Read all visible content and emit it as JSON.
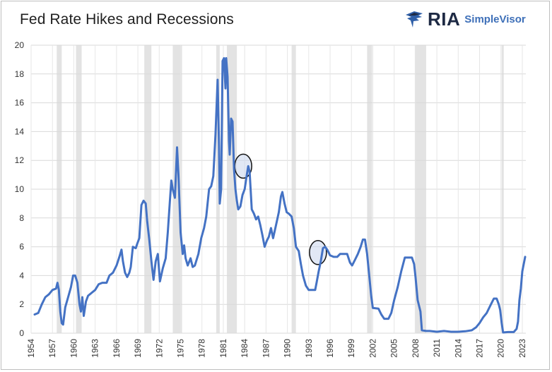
{
  "header": {
    "title": "Fed Rate Hikes and Recessions",
    "logo_main": "RIA",
    "logo_sub": "SimpleVisor"
  },
  "chart_data": {
    "type": "line",
    "title": "Fed Rate Hikes and Recessions",
    "xlabel": "",
    "ylabel": "",
    "xlim": [
      1954,
      2023.5
    ],
    "ylim": [
      0,
      20
    ],
    "grid": true,
    "x_ticks": [
      "1954",
      "1957",
      "1960",
      "1963",
      "1966",
      "1969",
      "1972",
      "1975",
      "1978",
      "1981",
      "1984",
      "1987",
      "1990",
      "1993",
      "1996",
      "1999",
      "2002",
      "2005",
      "2008",
      "2011",
      "2014",
      "2017",
      "2020",
      "2023"
    ],
    "y_ticks": [
      "0",
      "2",
      "4",
      "6",
      "8",
      "10",
      "12",
      "14",
      "16",
      "18",
      "20"
    ],
    "line_color": "#4472c4",
    "recession_color": "#d9d9d9",
    "recessions": [
      [
        1957.6,
        1958.3
      ],
      [
        1960.3,
        1961.1
      ],
      [
        1969.9,
        1970.9
      ],
      [
        1973.9,
        1975.2
      ],
      [
        1980.0,
        1980.5
      ],
      [
        1981.5,
        1982.9
      ],
      [
        1990.6,
        1991.2
      ],
      [
        2001.2,
        2001.9
      ],
      [
        2007.9,
        2009.5
      ],
      [
        2020.1,
        2020.4
      ]
    ],
    "highlights": [
      {
        "x": 1983.8,
        "y": 11.6
      },
      {
        "x": 1994.3,
        "y": 5.6
      }
    ],
    "series": [
      {
        "values": [
          [
            1954.5,
            1.3
          ],
          [
            1955.0,
            1.4
          ],
          [
            1955.5,
            2.0
          ],
          [
            1956.0,
            2.5
          ],
          [
            1956.5,
            2.7
          ],
          [
            1957.0,
            3.0
          ],
          [
            1957.5,
            3.1
          ],
          [
            1957.7,
            3.5
          ],
          [
            1957.9,
            3.0
          ],
          [
            1958.1,
            1.5
          ],
          [
            1958.3,
            0.7
          ],
          [
            1958.5,
            0.6
          ],
          [
            1958.8,
            1.8
          ],
          [
            1959.2,
            2.5
          ],
          [
            1959.6,
            3.2
          ],
          [
            1959.9,
            4.0
          ],
          [
            1960.2,
            4.0
          ],
          [
            1960.5,
            3.5
          ],
          [
            1960.8,
            2.0
          ],
          [
            1961.0,
            1.5
          ],
          [
            1961.2,
            2.5
          ],
          [
            1961.4,
            1.2
          ],
          [
            1961.7,
            2.2
          ],
          [
            1962.0,
            2.6
          ],
          [
            1962.5,
            2.8
          ],
          [
            1963.0,
            3.0
          ],
          [
            1963.5,
            3.4
          ],
          [
            1964.0,
            3.5
          ],
          [
            1964.6,
            3.5
          ],
          [
            1965.0,
            4.0
          ],
          [
            1965.5,
            4.2
          ],
          [
            1966.0,
            4.7
          ],
          [
            1966.4,
            5.3
          ],
          [
            1966.7,
            5.8
          ],
          [
            1966.9,
            5.0
          ],
          [
            1967.2,
            4.2
          ],
          [
            1967.5,
            3.9
          ],
          [
            1967.8,
            4.2
          ],
          [
            1968.0,
            4.6
          ],
          [
            1968.3,
            6.0
          ],
          [
            1968.7,
            5.9
          ],
          [
            1968.9,
            6.2
          ],
          [
            1969.2,
            6.6
          ],
          [
            1969.5,
            8.9
          ],
          [
            1969.8,
            9.2
          ],
          [
            1970.1,
            9.0
          ],
          [
            1970.3,
            7.8
          ],
          [
            1970.6,
            6.5
          ],
          [
            1970.9,
            5.0
          ],
          [
            1971.2,
            3.7
          ],
          [
            1971.5,
            5.0
          ],
          [
            1971.8,
            5.5
          ],
          [
            1972.1,
            3.6
          ],
          [
            1972.5,
            4.5
          ],
          [
            1972.9,
            5.2
          ],
          [
            1973.2,
            7.0
          ],
          [
            1973.5,
            9.2
          ],
          [
            1973.7,
            10.6
          ],
          [
            1973.9,
            10.0
          ],
          [
            1974.2,
            9.4
          ],
          [
            1974.5,
            12.9
          ],
          [
            1974.7,
            11.0
          ],
          [
            1975.0,
            7.0
          ],
          [
            1975.3,
            5.5
          ],
          [
            1975.5,
            6.1
          ],
          [
            1975.7,
            5.2
          ],
          [
            1976.0,
            4.7
          ],
          [
            1976.4,
            5.2
          ],
          [
            1976.7,
            4.6
          ],
          [
            1977.0,
            4.7
          ],
          [
            1977.5,
            5.5
          ],
          [
            1977.9,
            6.6
          ],
          [
            1978.3,
            7.3
          ],
          [
            1978.6,
            8.1
          ],
          [
            1979.0,
            10.0
          ],
          [
            1979.3,
            10.2
          ],
          [
            1979.6,
            10.9
          ],
          [
            1979.9,
            13.8
          ],
          [
            1980.2,
            17.6
          ],
          [
            1980.4,
            13.0
          ],
          [
            1980.5,
            9.0
          ],
          [
            1980.7,
            10.0
          ],
          [
            1980.9,
            18.9
          ],
          [
            1981.1,
            19.1
          ],
          [
            1981.3,
            17.0
          ],
          [
            1981.4,
            19.1
          ],
          [
            1981.6,
            17.8
          ],
          [
            1981.8,
            13.3
          ],
          [
            1981.9,
            12.4
          ],
          [
            1982.1,
            14.9
          ],
          [
            1982.3,
            14.7
          ],
          [
            1982.5,
            11.4
          ],
          [
            1982.7,
            10.0
          ],
          [
            1982.9,
            9.2
          ],
          [
            1983.1,
            8.6
          ],
          [
            1983.4,
            8.8
          ],
          [
            1983.7,
            9.6
          ],
          [
            1984.0,
            10.0
          ],
          [
            1984.3,
            11.0
          ],
          [
            1984.5,
            11.6
          ],
          [
            1984.7,
            11.2
          ],
          [
            1985.0,
            8.6
          ],
          [
            1985.3,
            8.3
          ],
          [
            1985.6,
            7.9
          ],
          [
            1985.9,
            8.1
          ],
          [
            1986.2,
            7.5
          ],
          [
            1986.5,
            6.8
          ],
          [
            1986.8,
            6.0
          ],
          [
            1987.1,
            6.4
          ],
          [
            1987.4,
            6.7
          ],
          [
            1987.7,
            7.3
          ],
          [
            1988.0,
            6.6
          ],
          [
            1988.4,
            7.5
          ],
          [
            1988.8,
            8.4
          ],
          [
            1989.1,
            9.5
          ],
          [
            1989.3,
            9.8
          ],
          [
            1989.6,
            9.0
          ],
          [
            1989.9,
            8.4
          ],
          [
            1990.2,
            8.3
          ],
          [
            1990.6,
            8.1
          ],
          [
            1990.9,
            7.3
          ],
          [
            1991.2,
            6.0
          ],
          [
            1991.6,
            5.7
          ],
          [
            1991.9,
            4.8
          ],
          [
            1992.2,
            4.0
          ],
          [
            1992.6,
            3.3
          ],
          [
            1993.0,
            3.0
          ],
          [
            1993.5,
            3.0
          ],
          [
            1993.9,
            3.0
          ],
          [
            1994.1,
            3.5
          ],
          [
            1994.4,
            4.3
          ],
          [
            1994.7,
            5.0
          ],
          [
            1995.0,
            5.9
          ],
          [
            1995.3,
            6.0
          ],
          [
            1995.6,
            5.8
          ],
          [
            1996.0,
            5.4
          ],
          [
            1996.5,
            5.3
          ],
          [
            1997.0,
            5.3
          ],
          [
            1997.4,
            5.5
          ],
          [
            1998.0,
            5.5
          ],
          [
            1998.4,
            5.5
          ],
          [
            1998.8,
            4.9
          ],
          [
            1999.1,
            4.7
          ],
          [
            1999.5,
            5.1
          ],
          [
            1999.9,
            5.5
          ],
          [
            2000.3,
            6.0
          ],
          [
            2000.6,
            6.5
          ],
          [
            2000.9,
            6.5
          ],
          [
            2001.2,
            5.5
          ],
          [
            2001.5,
            4.0
          ],
          [
            2001.8,
            2.5
          ],
          [
            2002.0,
            1.75
          ],
          [
            2002.8,
            1.7
          ],
          [
            2003.2,
            1.3
          ],
          [
            2003.6,
            1.0
          ],
          [
            2004.2,
            1.0
          ],
          [
            2004.6,
            1.4
          ],
          [
            2005.0,
            2.3
          ],
          [
            2005.5,
            3.2
          ],
          [
            2006.0,
            4.3
          ],
          [
            2006.5,
            5.25
          ],
          [
            2007.0,
            5.25
          ],
          [
            2007.5,
            5.25
          ],
          [
            2007.8,
            4.8
          ],
          [
            2008.0,
            3.9
          ],
          [
            2008.3,
            2.3
          ],
          [
            2008.7,
            1.5
          ],
          [
            2008.9,
            0.2
          ],
          [
            2009.5,
            0.15
          ],
          [
            2010.0,
            0.15
          ],
          [
            2011.0,
            0.1
          ],
          [
            2012.0,
            0.15
          ],
          [
            2013.0,
            0.1
          ],
          [
            2014.0,
            0.1
          ],
          [
            2015.0,
            0.13
          ],
          [
            2015.9,
            0.2
          ],
          [
            2016.5,
            0.4
          ],
          [
            2017.0,
            0.7
          ],
          [
            2017.5,
            1.1
          ],
          [
            2018.0,
            1.4
          ],
          [
            2018.5,
            1.9
          ],
          [
            2019.0,
            2.4
          ],
          [
            2019.4,
            2.4
          ],
          [
            2019.7,
            2.0
          ],
          [
            2019.9,
            1.6
          ],
          [
            2020.1,
            0.7
          ],
          [
            2020.3,
            0.05
          ],
          [
            2021.0,
            0.08
          ],
          [
            2021.8,
            0.08
          ],
          [
            2022.2,
            0.3
          ],
          [
            2022.4,
            0.8
          ],
          [
            2022.6,
            2.3
          ],
          [
            2022.8,
            3.1
          ],
          [
            2023.0,
            4.3
          ],
          [
            2023.2,
            4.8
          ],
          [
            2023.4,
            5.3
          ]
        ]
      }
    ]
  }
}
